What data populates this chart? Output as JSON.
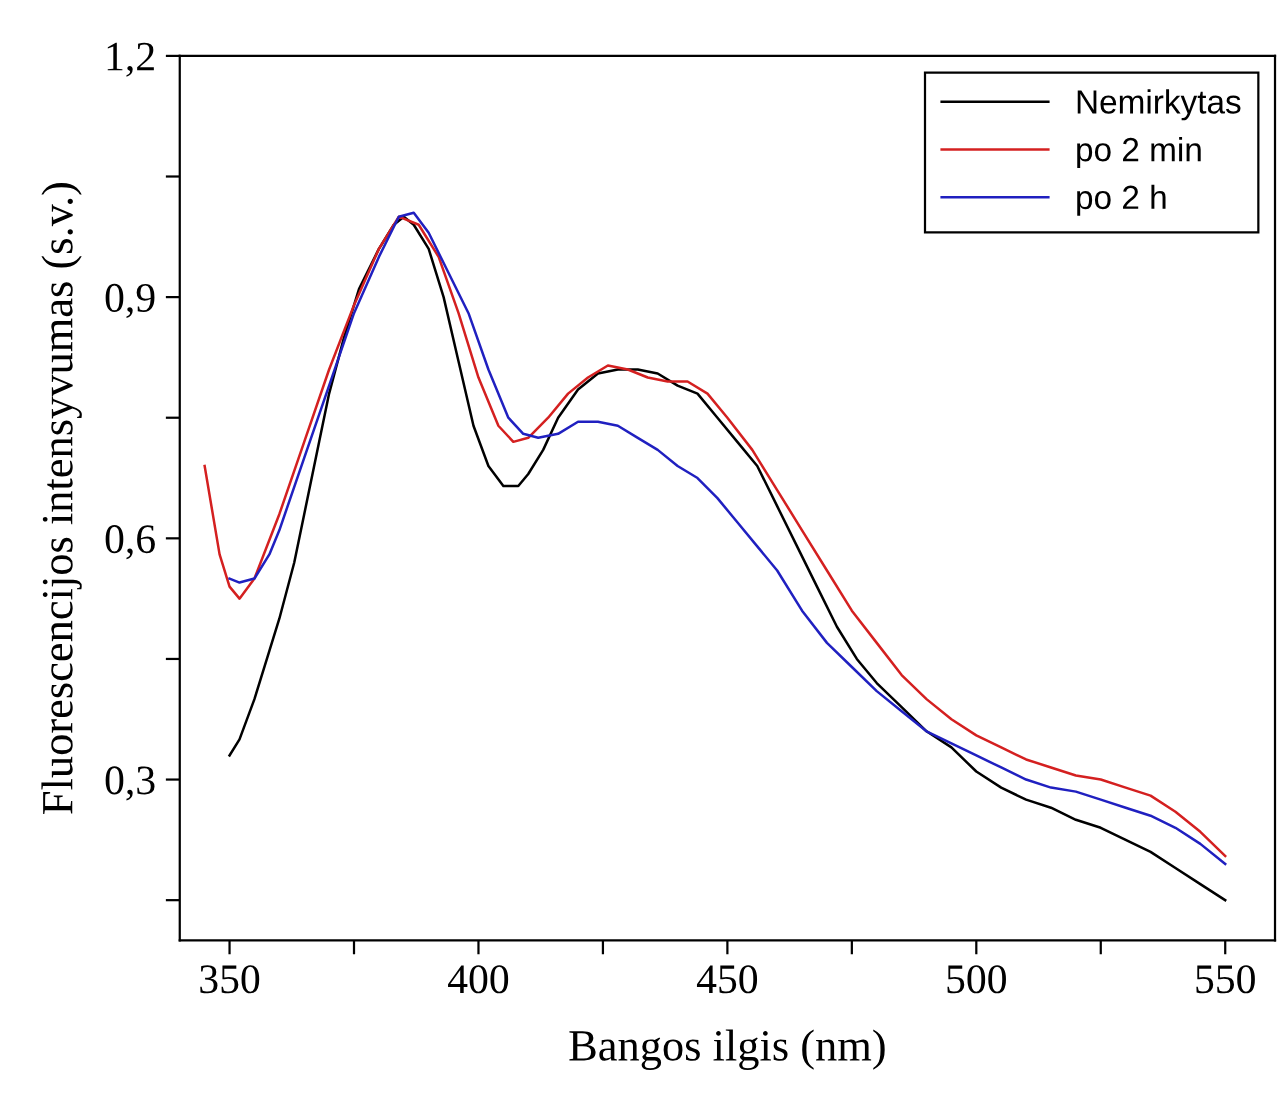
{
  "chart_data": {
    "type": "line",
    "xlabel": "Bangos ilgis (nm)",
    "ylabel": "Fluorescencijos intensyvumas (s.v.)",
    "xlim": [
      340,
      560
    ],
    "ylim": [
      0.1,
      1.2
    ],
    "xticks": [
      350,
      {
        "value": 375,
        "label": null
      },
      400,
      {
        "value": 425,
        "label": null
      },
      450,
      {
        "value": 475,
        "label": null
      },
      500,
      {
        "value": 525,
        "label": null
      },
      550
    ],
    "yticks": [
      {
        "value": 0.15,
        "label": null
      },
      {
        "value": 0.3,
        "label": "0,3"
      },
      {
        "value": 0.45,
        "label": null
      },
      {
        "value": 0.6,
        "label": "0,6"
      },
      {
        "value": 0.75,
        "label": null
      },
      {
        "value": 0.9,
        "label": "0,9"
      },
      {
        "value": 1.05,
        "label": null
      },
      {
        "value": 1.2,
        "label": "1,2"
      }
    ],
    "legend": "top right",
    "grid": false,
    "marker": "none",
    "line_style": "solid",
    "series": [
      {
        "name": "Nemirkytas",
        "color": "#000000",
        "x": [
          350,
          352,
          355,
          358,
          360,
          363,
          365,
          368,
          370,
          373,
          376,
          380,
          383,
          385,
          387,
          390,
          393,
          396,
          399,
          402,
          405,
          408,
          410,
          413,
          416,
          420,
          424,
          428,
          432,
          436,
          440,
          444,
          448,
          452,
          456,
          460,
          464,
          468,
          472,
          476,
          480,
          485,
          490,
          495,
          500,
          505,
          510,
          515,
          520,
          525,
          530,
          535,
          540,
          545,
          550
        ],
        "values": [
          0.33,
          0.35,
          0.4,
          0.46,
          0.5,
          0.57,
          0.63,
          0.72,
          0.78,
          0.85,
          0.91,
          0.96,
          0.99,
          1.0,
          0.99,
          0.96,
          0.9,
          0.82,
          0.74,
          0.69,
          0.665,
          0.665,
          0.68,
          0.71,
          0.75,
          0.785,
          0.805,
          0.81,
          0.81,
          0.805,
          0.79,
          0.78,
          0.75,
          0.72,
          0.69,
          0.64,
          0.59,
          0.54,
          0.49,
          0.45,
          0.42,
          0.39,
          0.36,
          0.34,
          0.31,
          0.29,
          0.275,
          0.265,
          0.25,
          0.24,
          0.225,
          0.21,
          0.19,
          0.17,
          0.15
        ]
      },
      {
        "name": "po 2 min",
        "color": "#d42020",
        "x": [
          345,
          348,
          350,
          352,
          355,
          360,
          365,
          370,
          375,
          380,
          384,
          388,
          392,
          396,
          400,
          404,
          407,
          410,
          414,
          418,
          422,
          426,
          430,
          434,
          438,
          442,
          446,
          450,
          455,
          460,
          465,
          470,
          475,
          480,
          485,
          490,
          495,
          500,
          505,
          510,
          515,
          520,
          525,
          530,
          535,
          540,
          545,
          550
        ],
        "values": [
          0.69,
          0.58,
          0.54,
          0.525,
          0.55,
          0.63,
          0.72,
          0.81,
          0.89,
          0.96,
          1.0,
          0.99,
          0.95,
          0.88,
          0.8,
          0.74,
          0.72,
          0.725,
          0.75,
          0.78,
          0.8,
          0.815,
          0.81,
          0.8,
          0.795,
          0.795,
          0.78,
          0.75,
          0.71,
          0.66,
          0.61,
          0.56,
          0.51,
          0.47,
          0.43,
          0.4,
          0.375,
          0.355,
          0.34,
          0.325,
          0.315,
          0.305,
          0.3,
          0.29,
          0.28,
          0.26,
          0.235,
          0.205
        ]
      },
      {
        "name": "po 2 h",
        "color": "#2020c0",
        "x": [
          350,
          352,
          355,
          358,
          360,
          365,
          370,
          375,
          380,
          384,
          387,
          390,
          394,
          398,
          402,
          406,
          409,
          412,
          416,
          420,
          424,
          428,
          432,
          436,
          440,
          444,
          448,
          452,
          456,
          460,
          465,
          470,
          475,
          480,
          485,
          490,
          495,
          500,
          505,
          510,
          515,
          520,
          525,
          530,
          535,
          540,
          545,
          550
        ],
        "values": [
          0.55,
          0.545,
          0.55,
          0.58,
          0.61,
          0.7,
          0.79,
          0.88,
          0.95,
          1.0,
          1.005,
          0.98,
          0.93,
          0.88,
          0.81,
          0.75,
          0.73,
          0.725,
          0.73,
          0.745,
          0.745,
          0.74,
          0.725,
          0.71,
          0.69,
          0.675,
          0.65,
          0.62,
          0.59,
          0.56,
          0.51,
          0.47,
          0.44,
          0.41,
          0.385,
          0.36,
          0.345,
          0.33,
          0.315,
          0.3,
          0.29,
          0.285,
          0.275,
          0.265,
          0.255,
          0.24,
          0.22,
          0.195
        ]
      }
    ]
  }
}
